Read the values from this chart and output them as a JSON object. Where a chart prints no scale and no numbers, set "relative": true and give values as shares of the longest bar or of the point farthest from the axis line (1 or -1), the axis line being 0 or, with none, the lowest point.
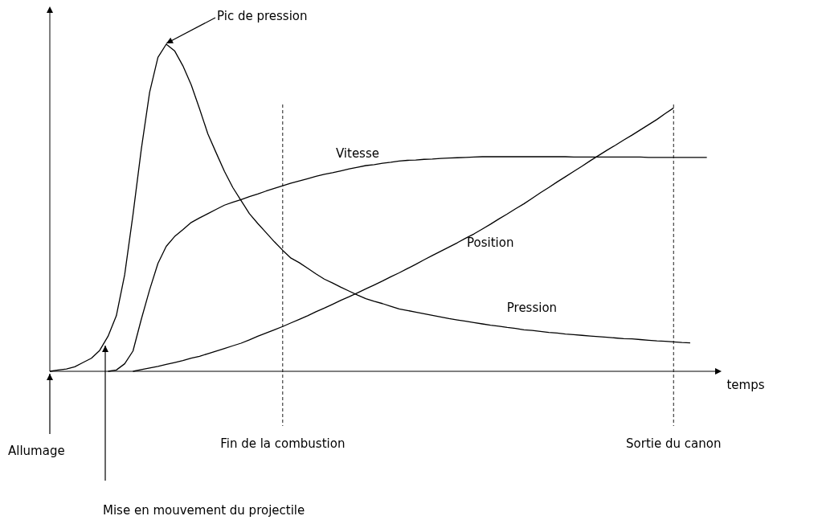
{
  "chart_data": {
    "type": "line",
    "relative": true,
    "xlabel": "temps",
    "line_style": "solid",
    "categories": [
      null,
      null,
      null,
      null,
      null,
      null,
      null,
      null,
      null,
      null,
      null,
      null,
      null,
      null,
      null,
      null,
      null,
      null,
      null,
      null,
      null,
      null,
      null,
      null,
      null,
      null,
      null,
      null,
      "Fin de la combustion",
      null,
      null,
      null,
      null,
      null,
      null,
      null,
      null,
      null,
      null,
      null,
      null,
      null,
      null,
      null,
      null,
      null,
      null,
      null,
      null,
      null,
      null,
      null,
      null,
      null,
      null,
      null,
      null,
      null,
      null,
      null,
      null,
      null,
      null,
      null,
      null,
      null,
      null,
      null,
      null,
      null,
      null,
      null,
      null,
      null,
      null,
      "Sortie du canon",
      null,
      null,
      null,
      null,
      null
    ],
    "series": [
      {
        "name": "Pression",
        "color": "#000000",
        "values": [
          0,
          0.004,
          0.007,
          0.014,
          0.027,
          0.04,
          0.064,
          0.107,
          0.17,
          0.295,
          0.479,
          0.679,
          0.853,
          0.96,
          1,
          0.98,
          0.934,
          0.876,
          0.803,
          0.726,
          0.668,
          0.611,
          0.562,
          0.522,
          0.482,
          0.452,
          0.424,
          0.396,
          0.37,
          0.346,
          0.332,
          0.315,
          0.298,
          0.282,
          0.27,
          0.257,
          0.245,
          0.233,
          0.222,
          0.214,
          0.207,
          0.199,
          0.191,
          0.186,
          0.181,
          0.176,
          0.171,
          0.166,
          0.161,
          0.157,
          0.153,
          0.149,
          0.145,
          0.141,
          0.138,
          0.134,
          0.131,
          0.127,
          0.125,
          0.122,
          0.119,
          0.117,
          0.114,
          0.112,
          0.11,
          0.108,
          0.106,
          0.104,
          0.102,
          0.1,
          0.099,
          0.097,
          0.095,
          0.093,
          0.092,
          0.09,
          0.088,
          0.087,
          null,
          null,
          null
        ]
      },
      {
        "name": "Vitesse",
        "color": "#000000",
        "values": [
          null,
          null,
          null,
          null,
          null,
          null,
          null,
          0,
          0.004,
          0.023,
          0.062,
          0.159,
          0.249,
          0.33,
          0.382,
          0.412,
          0.433,
          0.455,
          0.469,
          0.482,
          0.495,
          0.508,
          0.517,
          0.525,
          0.534,
          0.542,
          0.551,
          0.559,
          0.567,
          0.575,
          0.582,
          0.589,
          0.596,
          0.602,
          0.607,
          0.613,
          0.619,
          0.624,
          0.629,
          0.632,
          0.636,
          0.639,
          0.643,
          0.645,
          0.646,
          0.648,
          0.649,
          0.651,
          0.652,
          0.653,
          0.654,
          0.655,
          0.656,
          0.656,
          0.656,
          0.656,
          0.656,
          0.656,
          0.656,
          0.656,
          0.656,
          0.656,
          0.656,
          0.655,
          0.655,
          0.655,
          0.655,
          0.655,
          0.655,
          0.655,
          0.655,
          0.655,
          0.654,
          0.654,
          0.654,
          0.654,
          0.654,
          0.654,
          0.654,
          0.654,
          null
        ]
      },
      {
        "name": "Position",
        "color": "#000000",
        "values": [
          null,
          null,
          null,
          null,
          null,
          null,
          null,
          null,
          null,
          null,
          0,
          0.005,
          0.01,
          0.015,
          0.021,
          0.027,
          0.033,
          0.04,
          0.046,
          0.054,
          0.062,
          0.07,
          0.078,
          0.086,
          0.096,
          0.107,
          0.117,
          0.127,
          0.137,
          0.148,
          0.159,
          0.17,
          0.182,
          0.193,
          0.205,
          0.217,
          0.228,
          0.24,
          0.252,
          0.264,
          0.276,
          0.289,
          0.301,
          0.314,
          0.327,
          0.341,
          0.354,
          0.367,
          0.38,
          0.393,
          0.407,
          0.42,
          0.435,
          0.45,
          0.466,
          0.481,
          0.497,
          0.512,
          0.529,
          0.546,
          0.562,
          0.579,
          0.595,
          0.611,
          0.627,
          0.644,
          0.66,
          0.676,
          0.691,
          0.707,
          0.722,
          0.738,
          0.754,
          0.77,
          0.788,
          0.805,
          null,
          null,
          null,
          null,
          null
        ]
      }
    ],
    "annotations": [
      "Pic de pression",
      "Allumage",
      "Mise en mouvement du projectile"
    ]
  }
}
